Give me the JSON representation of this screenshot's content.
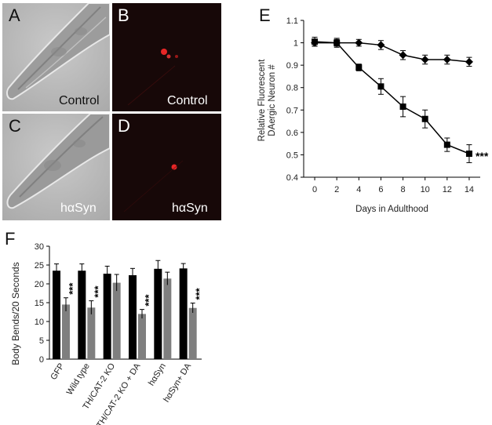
{
  "panels": {
    "A": {
      "letter": "A",
      "caption": "Control"
    },
    "B": {
      "letter": "B",
      "caption": "Control"
    },
    "C": {
      "letter": "C",
      "caption": "hαSyn"
    },
    "D": {
      "letter": "D",
      "caption": "hαSyn"
    }
  },
  "colors": {
    "bright_field": "#b9b9b9",
    "fluor_bg": "#170808",
    "puncta": "#ff2a2a",
    "black_bar": "#000000",
    "gray_bar": "#808080"
  },
  "chart_data": [
    {
      "panel": "E",
      "type": "line",
      "xlabel": "Days in Adulthood",
      "ylabel_lines": [
        "Relative  Fluorescent",
        "DAergic  Neuron #"
      ],
      "xticks": [
        0,
        2,
        4,
        6,
        8,
        10,
        12,
        14
      ],
      "yticks": [
        "0.4",
        "0.5",
        "0.6",
        "0.7",
        "0.8",
        "0.9",
        "1",
        "1.1"
      ],
      "xlim": [
        -1,
        15
      ],
      "ylim": [
        0.4,
        1.1
      ],
      "grid": false,
      "series": [
        {
          "marker": "diamond",
          "x": [
            0,
            2,
            4,
            6,
            8,
            10,
            12,
            14
          ],
          "y": [
            1.0,
            1.0,
            1.0,
            0.99,
            0.945,
            0.925,
            0.925,
            0.915
          ],
          "err": [
            0.015,
            0.015,
            0.015,
            0.02,
            0.02,
            0.02,
            0.02,
            0.02
          ]
        },
        {
          "marker": "square",
          "x": [
            0,
            2,
            4,
            6,
            8,
            10,
            12,
            14
          ],
          "y": [
            1.005,
            1.0,
            0.89,
            0.805,
            0.715,
            0.66,
            0.545,
            0.505
          ],
          "err": [
            0.02,
            0.02,
            0.015,
            0.035,
            0.045,
            0.04,
            0.03,
            0.04
          ]
        }
      ],
      "annotation": "***"
    },
    {
      "panel": "F",
      "type": "bar",
      "ylabel": "Body Bends/20 Seconds",
      "categories": [
        "GFP",
        "Wild type",
        "TH/CAT-2 KO",
        "TH/CAT-2 KO + DA",
        "hαSyn",
        "hαSyn+ DA"
      ],
      "yticks": [
        "0",
        "5",
        "10",
        "15",
        "20",
        "25",
        "30"
      ],
      "ylim": [
        0,
        30
      ],
      "series": [
        {
          "color": "black",
          "values": [
            23.5,
            23.5,
            22.7,
            22.3,
            24.0,
            24.1
          ],
          "err": [
            1.8,
            1.8,
            2.0,
            1.8,
            2.2,
            1.3
          ]
        },
        {
          "color": "gray",
          "values": [
            14.5,
            13.7,
            20.3,
            12.0,
            21.4,
            13.6
          ],
          "err": [
            1.8,
            1.8,
            2.2,
            1.2,
            1.7,
            1.3
          ]
        }
      ],
      "significance": [
        "***",
        "***",
        "",
        "***",
        "",
        "***"
      ]
    }
  ]
}
